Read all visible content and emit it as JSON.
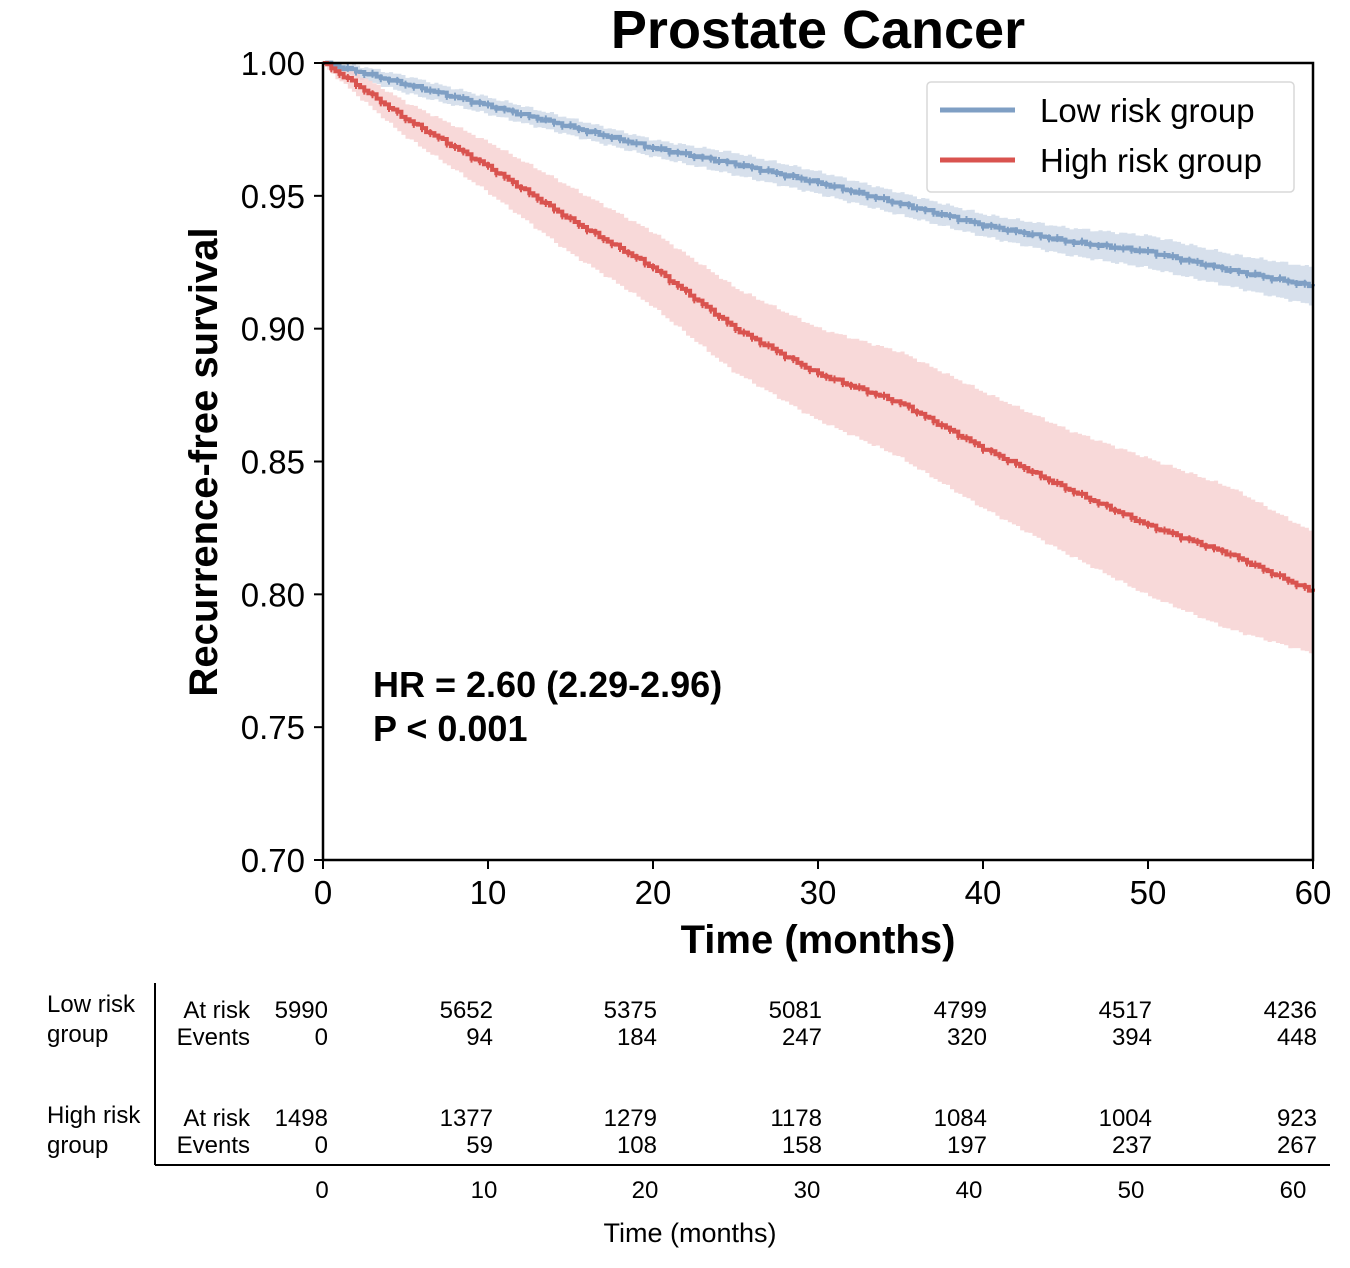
{
  "chart_data": {
    "type": "line",
    "title": "Prostate Cancer",
    "xlabel": "Time (months)",
    "ylabel": "Recurrence-free survival",
    "xlim": [
      0,
      60
    ],
    "ylim": [
      0.7,
      1.0
    ],
    "xticks": [
      "0",
      "10",
      "20",
      "30",
      "40",
      "50",
      "60"
    ],
    "yticks": [
      "0.70",
      "0.75",
      "0.80",
      "0.85",
      "0.90",
      "0.95",
      "1.00"
    ],
    "grid": false,
    "legend_position": "top-right",
    "annotations": [
      "HR = 2.60 (2.29-2.96)",
      "P < 0.001"
    ],
    "series": [
      {
        "name": "Low risk group",
        "color": "#7f9fc4",
        "ci_color": "#c9d6e6",
        "x": [
          0,
          2,
          5,
          10,
          15,
          20,
          25,
          30,
          35,
          40,
          45,
          50,
          55,
          60
        ],
        "y": [
          1.0,
          0.997,
          0.992,
          0.984,
          0.976,
          0.968,
          0.962,
          0.955,
          0.947,
          0.939,
          0.933,
          0.929,
          0.922,
          0.916
        ],
        "lower": [
          1.0,
          0.995,
          0.989,
          0.981,
          0.973,
          0.965,
          0.958,
          0.951,
          0.943,
          0.935,
          0.928,
          0.923,
          0.916,
          0.909
        ],
        "upper": [
          1.0,
          0.999,
          0.995,
          0.987,
          0.979,
          0.971,
          0.966,
          0.959,
          0.951,
          0.943,
          0.938,
          0.935,
          0.928,
          0.923
        ]
      },
      {
        "name": "High risk group",
        "color": "#d9534f",
        "ci_color": "#f5cccc",
        "x": [
          0,
          2,
          5,
          10,
          15,
          20,
          25,
          30,
          35,
          40,
          45,
          50,
          55,
          60
        ],
        "y": [
          1.0,
          0.992,
          0.979,
          0.961,
          0.941,
          0.923,
          0.9,
          0.883,
          0.872,
          0.855,
          0.84,
          0.826,
          0.815,
          0.801
        ],
        "lower": [
          1.0,
          0.989,
          0.973,
          0.952,
          0.929,
          0.909,
          0.884,
          0.866,
          0.852,
          0.833,
          0.816,
          0.8,
          0.787,
          0.778
        ],
        "upper": [
          1.0,
          0.996,
          0.985,
          0.97,
          0.953,
          0.936,
          0.915,
          0.9,
          0.891,
          0.876,
          0.862,
          0.851,
          0.84,
          0.823
        ]
      }
    ]
  },
  "risk_table": {
    "xlabel": "Time (months)",
    "times": [
      "0",
      "10",
      "20",
      "30",
      "40",
      "50",
      "60"
    ],
    "groups": [
      {
        "label_line1": "Low risk",
        "label_line2": "group",
        "at_risk_label": "At risk",
        "events_label": "Events",
        "at_risk": [
          "5990",
          "5652",
          "5375",
          "5081",
          "4799",
          "4517",
          "4236"
        ],
        "events": [
          "0",
          "94",
          "184",
          "247",
          "320",
          "394",
          "448"
        ]
      },
      {
        "label_line1": "High risk",
        "label_line2": "group",
        "at_risk_label": "At risk",
        "events_label": "Events",
        "at_risk": [
          "1498",
          "1377",
          "1279",
          "1178",
          "1084",
          "1004",
          "923"
        ],
        "events": [
          "0",
          "59",
          "108",
          "158",
          "197",
          "237",
          "267"
        ]
      }
    ]
  }
}
